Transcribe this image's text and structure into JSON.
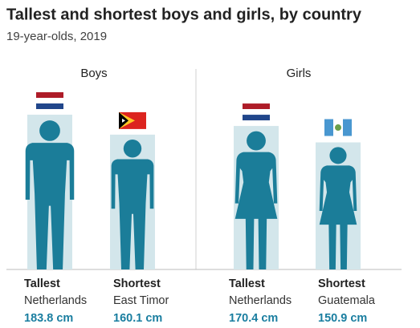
{
  "chart_data": {
    "type": "pictogram",
    "title": "Tallest and shortest boys and girls, by country",
    "subtitle": "19-year-olds, 2019",
    "bar_color": "#d3e6eb",
    "figure_color": "#1b7d99",
    "value_color": "#1a7ea0",
    "groups": [
      {
        "name": "Boys",
        "figure": "boy",
        "categories": [
          "Tallest",
          "Shortest"
        ],
        "countries": [
          "Netherlands",
          "East Timor"
        ],
        "values": [
          183.8,
          160.1
        ],
        "value_labels": [
          "183.8 cm",
          "160.1 cm"
        ]
      },
      {
        "name": "Girls",
        "figure": "girl",
        "categories": [
          "Tallest",
          "Shortest"
        ],
        "countries": [
          "Netherlands",
          "Guatemala"
        ],
        "values": [
          170.4,
          150.9
        ],
        "value_labels": [
          "170.4 cm",
          "150.9 cm"
        ]
      }
    ]
  }
}
